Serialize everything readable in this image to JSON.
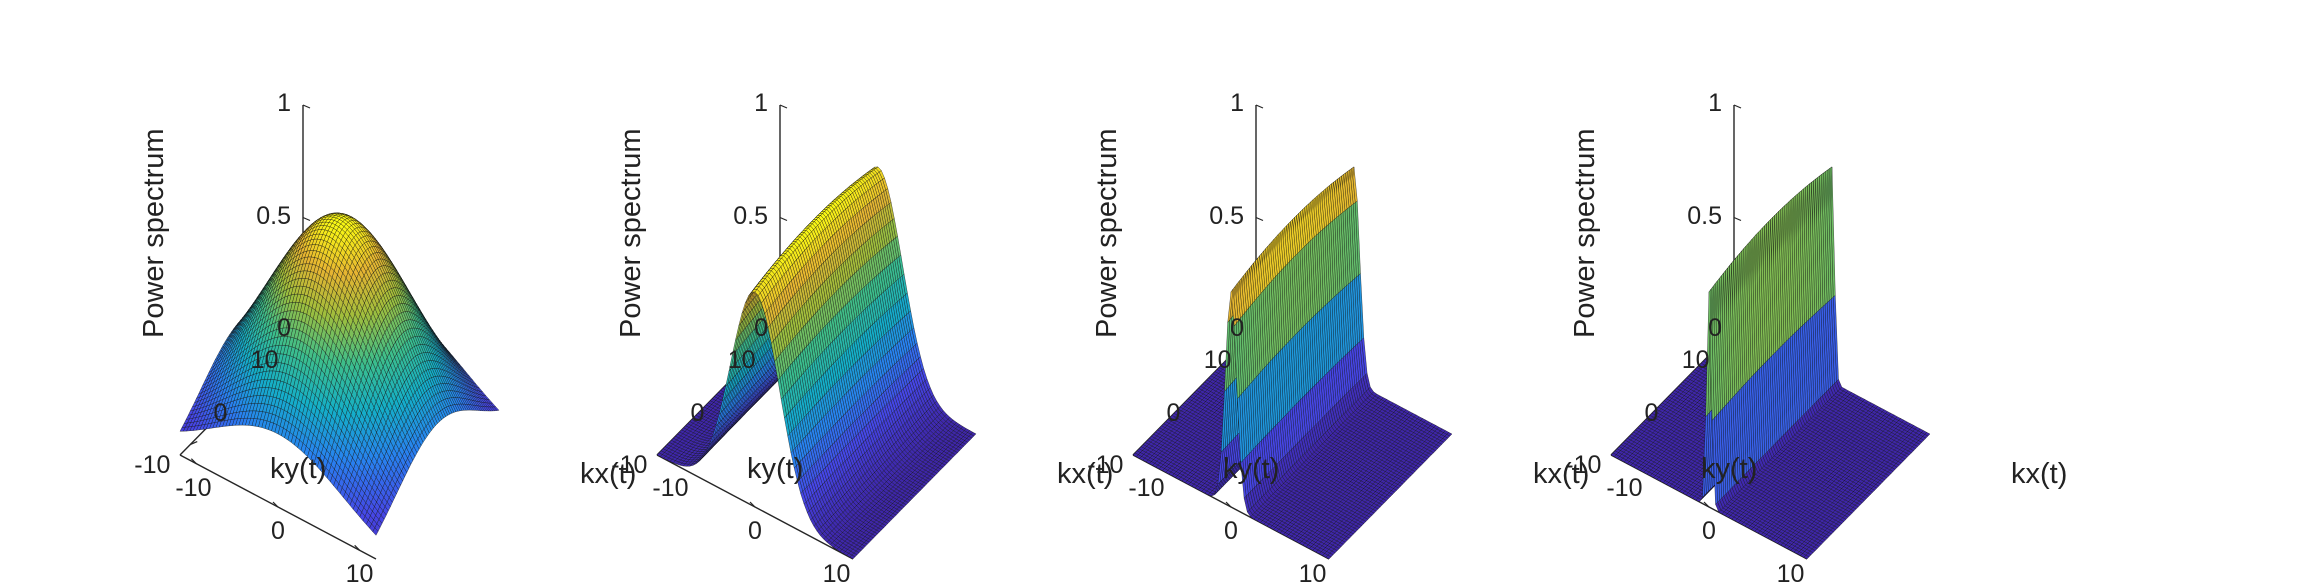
{
  "chart_data": [
    {
      "type": "surface",
      "zlabel": "Power spectrum",
      "xlabel": "kx(t)",
      "ylabel": "ky(t)",
      "zticks": [
        "0",
        "0.5",
        "1"
      ],
      "xticks": [
        "-10",
        "0",
        "10"
      ],
      "yticks": [
        "-10",
        "0",
        "10"
      ],
      "xlim": [
        -12,
        12
      ],
      "ylim": [
        -12,
        12
      ],
      "zlim": [
        0,
        1
      ],
      "colormap": "parula",
      "surface": {
        "peak_z": 1.0,
        "peak_kx": 0,
        "peak_ky": 0,
        "sigma_kx": 8.0,
        "sigma_ky": 8.0
      }
    },
    {
      "type": "surface",
      "zlabel": "Power spectrum",
      "xlabel": "kx(t)",
      "ylabel": "ky(t)",
      "zticks": [
        "0",
        "0.5",
        "1"
      ],
      "xticks": [
        "-10",
        "0",
        "10"
      ],
      "yticks": [
        "-10",
        "0",
        "10"
      ],
      "xlim": [
        -12,
        12
      ],
      "ylim": [
        -12,
        12
      ],
      "zlim": [
        0,
        1
      ],
      "colormap": "parula",
      "surface": {
        "peak_z": 1.0,
        "peak_kx": 0,
        "peak_ky": 0,
        "sigma_kx": 3.0,
        "sigma_ky": 40.0
      }
    },
    {
      "type": "surface",
      "zlabel": "Power spectrum",
      "xlabel": "kx(t)",
      "ylabel": "ky(t)",
      "zticks": [
        "0",
        "0.5",
        "1"
      ],
      "xticks": [
        "-10",
        "0",
        "10"
      ],
      "yticks": [
        "-10",
        "0",
        "10"
      ],
      "xlim": [
        -12,
        12
      ],
      "ylim": [
        -12,
        12
      ],
      "zlim": [
        0,
        1
      ],
      "colormap": "parula",
      "surface": {
        "peak_z": 1.0,
        "peak_kx": 0,
        "peak_ky": 0,
        "sigma_kx": 0.7,
        "sigma_ky": 40.0
      }
    },
    {
      "type": "surface",
      "zlabel": "Power spectrum",
      "xlabel": "kx(t)",
      "ylabel": "ky(t)",
      "zticks": [
        "0",
        "0.5",
        "1"
      ],
      "xticks": [
        "-10",
        "0",
        "10"
      ],
      "yticks": [
        "-10",
        "0",
        "10"
      ],
      "xlim": [
        -12,
        12
      ],
      "ylim": [
        -12,
        12
      ],
      "zlim": [
        0,
        1
      ],
      "colormap": "parula",
      "surface": {
        "peak_z": 1.0,
        "peak_kx": 0,
        "peak_ky": 0,
        "sigma_kx": 0.3,
        "sigma_ky": 40.0
      }
    }
  ]
}
